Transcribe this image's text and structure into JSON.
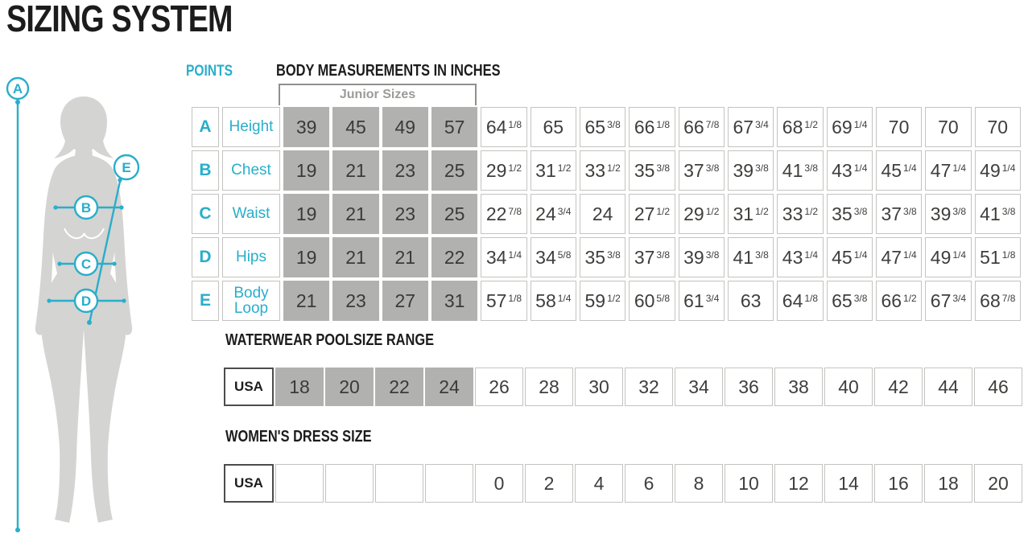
{
  "page_title": "SIZING SYSTEM",
  "colors": {
    "accent": "#29aecb",
    "ink": "#1c1c1c",
    "junior_cell_gray": "#b1b1af",
    "silhouette_gray": "#d4d4d2",
    "muted_label_gray": "#9b9b99"
  },
  "points_label": "POINTS",
  "figure": {
    "points": [
      "A",
      "B",
      "C",
      "D",
      "E"
    ]
  },
  "body_table": {
    "heading": "BODY MEASUREMENTS IN INCHES",
    "junior_label": "Junior Sizes",
    "junior_columns": 4,
    "rows": [
      {
        "point": "A",
        "label": "Height",
        "values": [
          "39",
          "45",
          "49",
          "57",
          "64 1/8",
          "65",
          "65 3/8",
          "66 1/8",
          "66 7/8",
          "67 3/4",
          "68 1/2",
          "69 1/4",
          "70",
          "70",
          "70"
        ]
      },
      {
        "point": "B",
        "label": "Chest",
        "values": [
          "19",
          "21",
          "23",
          "25",
          "29 1/2",
          "31 1/2",
          "33 1/2",
          "35 3/8",
          "37 3/8",
          "39 3/8",
          "41 3/8",
          "43 1/4",
          "45 1/4",
          "47 1/4",
          "49 1/4"
        ]
      },
      {
        "point": "C",
        "label": "Waist",
        "values": [
          "19",
          "21",
          "23",
          "25",
          "22 7/8",
          "24 3/4",
          "24",
          "27 1/2",
          "29 1/2",
          "31 1/2",
          "33 1/2",
          "35 3/8",
          "37 3/8",
          "39 3/8",
          "41 3/8"
        ]
      },
      {
        "point": "D",
        "label": "Hips",
        "values": [
          "19",
          "21",
          "21",
          "22",
          "34 1/4",
          "34 5/8",
          "35 3/8",
          "37 3/8",
          "39 3/8",
          "41 3/8",
          "43 1/4",
          "45 1/4",
          "47 1/4",
          "49 1/4",
          "51 1/8"
        ]
      },
      {
        "point": "E",
        "label": "Body Loop",
        "values": [
          "21",
          "23",
          "27",
          "31",
          "57 1/8",
          "58 1/4",
          "59 1/2",
          "60 5/8",
          "61 3/4",
          "63",
          "64 1/8",
          "65 3/8",
          "66 1/2",
          "67 3/4",
          "68 7/8"
        ]
      }
    ]
  },
  "waterwear": {
    "heading": "WATERWEAR POOLSIZE RANGE",
    "row_label": "USA",
    "gray_columns": 4,
    "sizes": [
      "18",
      "20",
      "22",
      "24",
      "26",
      "28",
      "30",
      "32",
      "34",
      "36",
      "38",
      "40",
      "42",
      "44",
      "46"
    ]
  },
  "dress": {
    "heading": "WOMEN'S DRESS SIZE",
    "row_label": "USA",
    "empty_columns": 4,
    "sizes": [
      "0",
      "2",
      "4",
      "6",
      "8",
      "10",
      "12",
      "14",
      "16",
      "18",
      "20"
    ]
  }
}
